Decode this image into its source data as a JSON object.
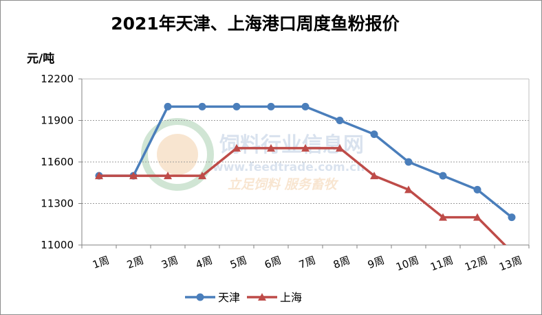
{
  "chart_data": {
    "type": "line",
    "title": "2021年天津、上海港口周度鱼粉报价",
    "ylabel": "元/吨",
    "xlabel": "",
    "categories": [
      "1周",
      "2周",
      "3周",
      "4周",
      "5周",
      "6周",
      "7周",
      "8周",
      "9周",
      "10周",
      "11周",
      "12周",
      "13周"
    ],
    "ylim": [
      11000,
      12200
    ],
    "yticks": [
      11000,
      11300,
      11600,
      11900,
      12200
    ],
    "grid": "horizontal-dotted",
    "legend": "bottom",
    "series": [
      {
        "name": "天津",
        "color": "#4a7ebb",
        "marker": "circle",
        "values": [
          11500,
          11500,
          12000,
          12000,
          12000,
          12000,
          12000,
          11900,
          11800,
          11600,
          11500,
          11400,
          11200
        ]
      },
      {
        "name": "上海",
        "color": "#be4b48",
        "marker": "triangle",
        "values": [
          11500,
          11500,
          11500,
          11500,
          11700,
          11700,
          11700,
          11700,
          11500,
          11400,
          11200,
          11200,
          10950
        ]
      }
    ]
  },
  "watermark": {
    "line1": "饲料行业信息网",
    "line2": "www.feedtrade.com.cn",
    "line3": "立足饲料  服务畜牧"
  }
}
